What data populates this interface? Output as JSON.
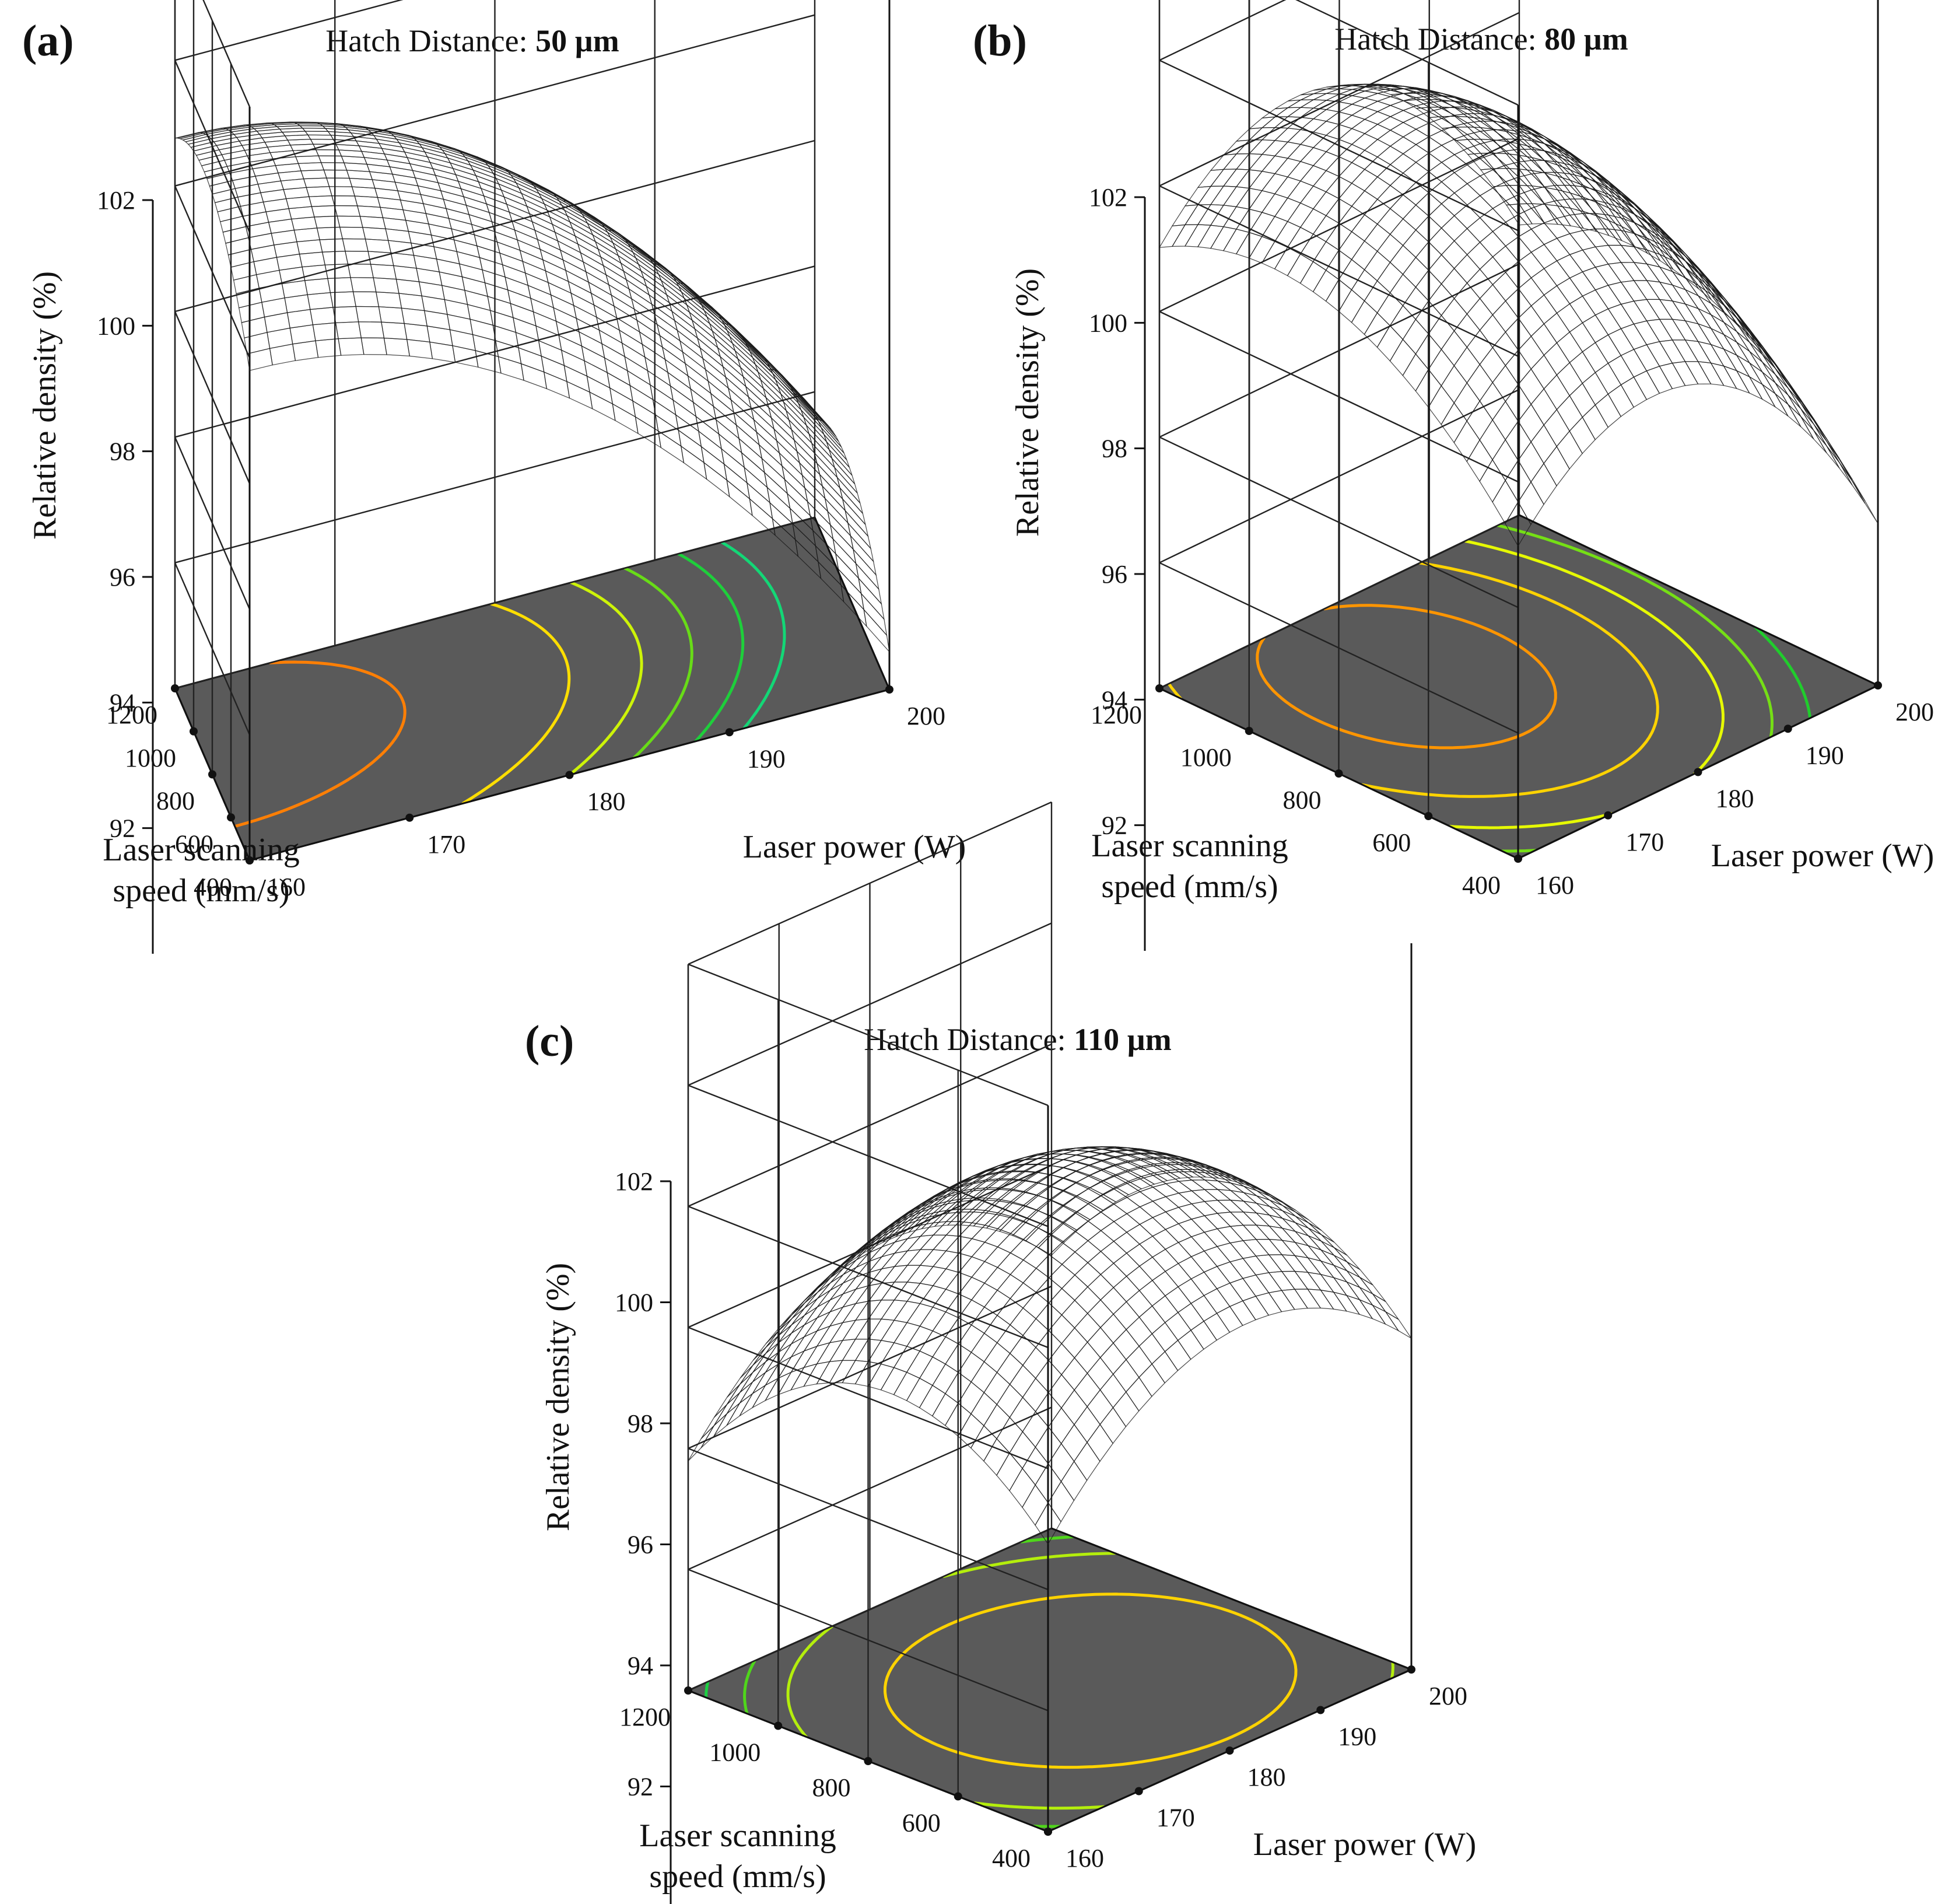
{
  "chart_data": [
    {
      "type": "surface3d",
      "panel_label": "(a)",
      "title_prefix": "Hatch Distance: ",
      "title_value": "50 µm",
      "zlabel": "Relative density (%)",
      "xlabel": "Laser power (W)",
      "ylabel_line1": "Laser scanning",
      "ylabel_line2": "speed (mm/s)",
      "z_ticks": [
        "92",
        "94",
        "96",
        "98",
        "100",
        "102"
      ],
      "x_ticks": [
        "160",
        "170",
        "180",
        "190",
        "200"
      ],
      "y_ticks": [
        "400",
        "600",
        "800",
        "1000",
        "1200"
      ],
      "zlim": [
        90,
        102
      ],
      "xlim": [
        160,
        200
      ],
      "ylim": [
        400,
        1200
      ],
      "model": {
        "base": 99.3,
        "peak_power": 160,
        "power_curv": 0.0045,
        "peak_speed": 900,
        "speed_curv": 6e-06
      },
      "colorscale": [
        [
          0,
          "#00e5e5"
        ],
        [
          0.33,
          "#22cc22"
        ],
        [
          0.55,
          "#ffff00"
        ],
        [
          0.78,
          "#ff9900"
        ],
        [
          1,
          "#ff1a1a"
        ]
      ],
      "contour_levels": [
        93.5,
        94.3,
        95.2,
        96.0,
        97.0,
        98.6
      ],
      "floor_color": "#5a5a5a"
    },
    {
      "type": "surface3d",
      "panel_label": "(b)",
      "title_prefix": "Hatch Distance: ",
      "title_value": "80 µm",
      "zlabel": "Relative density (%)",
      "xlabel": "Laser power (W)",
      "ylabel_line1": "Laser scanning",
      "ylabel_line2": "speed (mm/s)",
      "z_ticks": [
        "92",
        "94",
        "96",
        "98",
        "100",
        "102"
      ],
      "x_ticks": [
        "160",
        "170",
        "180",
        "190",
        "200"
      ],
      "y_ticks": [
        "400",
        "600",
        "800",
        "1000",
        "1200"
      ],
      "zlim": [
        90,
        102
      ],
      "xlim": [
        160,
        200
      ],
      "ylim": [
        400,
        1200
      ],
      "model": {
        "base": 98.9,
        "peak_power": 175,
        "power_curv": 0.006,
        "peak_speed": 950,
        "speed_curv": 8.5e-06
      },
      "colorscale": [
        [
          0,
          "#00e5e5"
        ],
        [
          0.33,
          "#22cc22"
        ],
        [
          0.55,
          "#ffff00"
        ],
        [
          0.78,
          "#ff9900"
        ],
        [
          1,
          "#ff1a1a"
        ]
      ],
      "contour_levels": [
        94.5,
        95.3,
        96.2,
        97.2,
        98.3
      ],
      "floor_color": "#5a5a5a"
    },
    {
      "type": "surface3d",
      "panel_label": "(c)",
      "title_prefix": "Hatch Distance: ",
      "title_value": "110 µm",
      "zlabel": "Relative density (%)",
      "xlabel": "Laser power (W)",
      "ylabel_line1": "Laser scanning",
      "ylabel_line2": "speed (mm/s)",
      "z_ticks": [
        "92",
        "94",
        "96",
        "98",
        "100",
        "102"
      ],
      "x_ticks": [
        "160",
        "170",
        "180",
        "190",
        "200"
      ],
      "y_ticks": [
        "400",
        "600",
        "800",
        "1000",
        "1200"
      ],
      "zlim": [
        90,
        102
      ],
      "xlim": [
        160,
        200
      ],
      "ylim": [
        400,
        1200
      ],
      "model": {
        "base": 98.4,
        "peak_power": 182,
        "power_curv": 0.0045,
        "peak_speed": 750,
        "speed_curv": 1.2e-05
      },
      "colorscale": [
        [
          0,
          "#00e5e5"
        ],
        [
          0.33,
          "#22cc22"
        ],
        [
          0.55,
          "#ffff00"
        ],
        [
          0.78,
          "#ff9900"
        ],
        [
          1,
          "#ff1a1a"
        ]
      ],
      "contour_levels": [
        94.2,
        95.0,
        95.8,
        97.2
      ],
      "floor_color": "#5a5a5a"
    }
  ]
}
